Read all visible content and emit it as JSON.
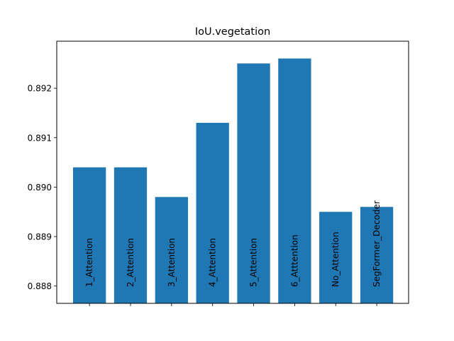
{
  "chart_data": {
    "type": "bar",
    "title": "IoU.vegetation",
    "xlabel": "",
    "ylabel": "",
    "categories": [
      "1_Attention",
      "2_Attention",
      "3_Attention",
      "4_Attention",
      "5_Attention",
      "6_Atttention",
      "No_Attention",
      "SegFormer_Decoder"
    ],
    "values": [
      0.8904,
      0.8904,
      0.8898,
      0.8913,
      0.8925,
      0.8926,
      0.8895,
      0.8896
    ],
    "ylim": [
      0.88765,
      0.89295
    ],
    "yticks": [
      0.888,
      0.889,
      0.89,
      0.891,
      0.892
    ],
    "ytick_labels": [
      "0.888",
      "0.889",
      "0.890",
      "0.891",
      "0.892"
    ],
    "bar_color": "#1f77b4",
    "grid": false,
    "legend": "none"
  }
}
